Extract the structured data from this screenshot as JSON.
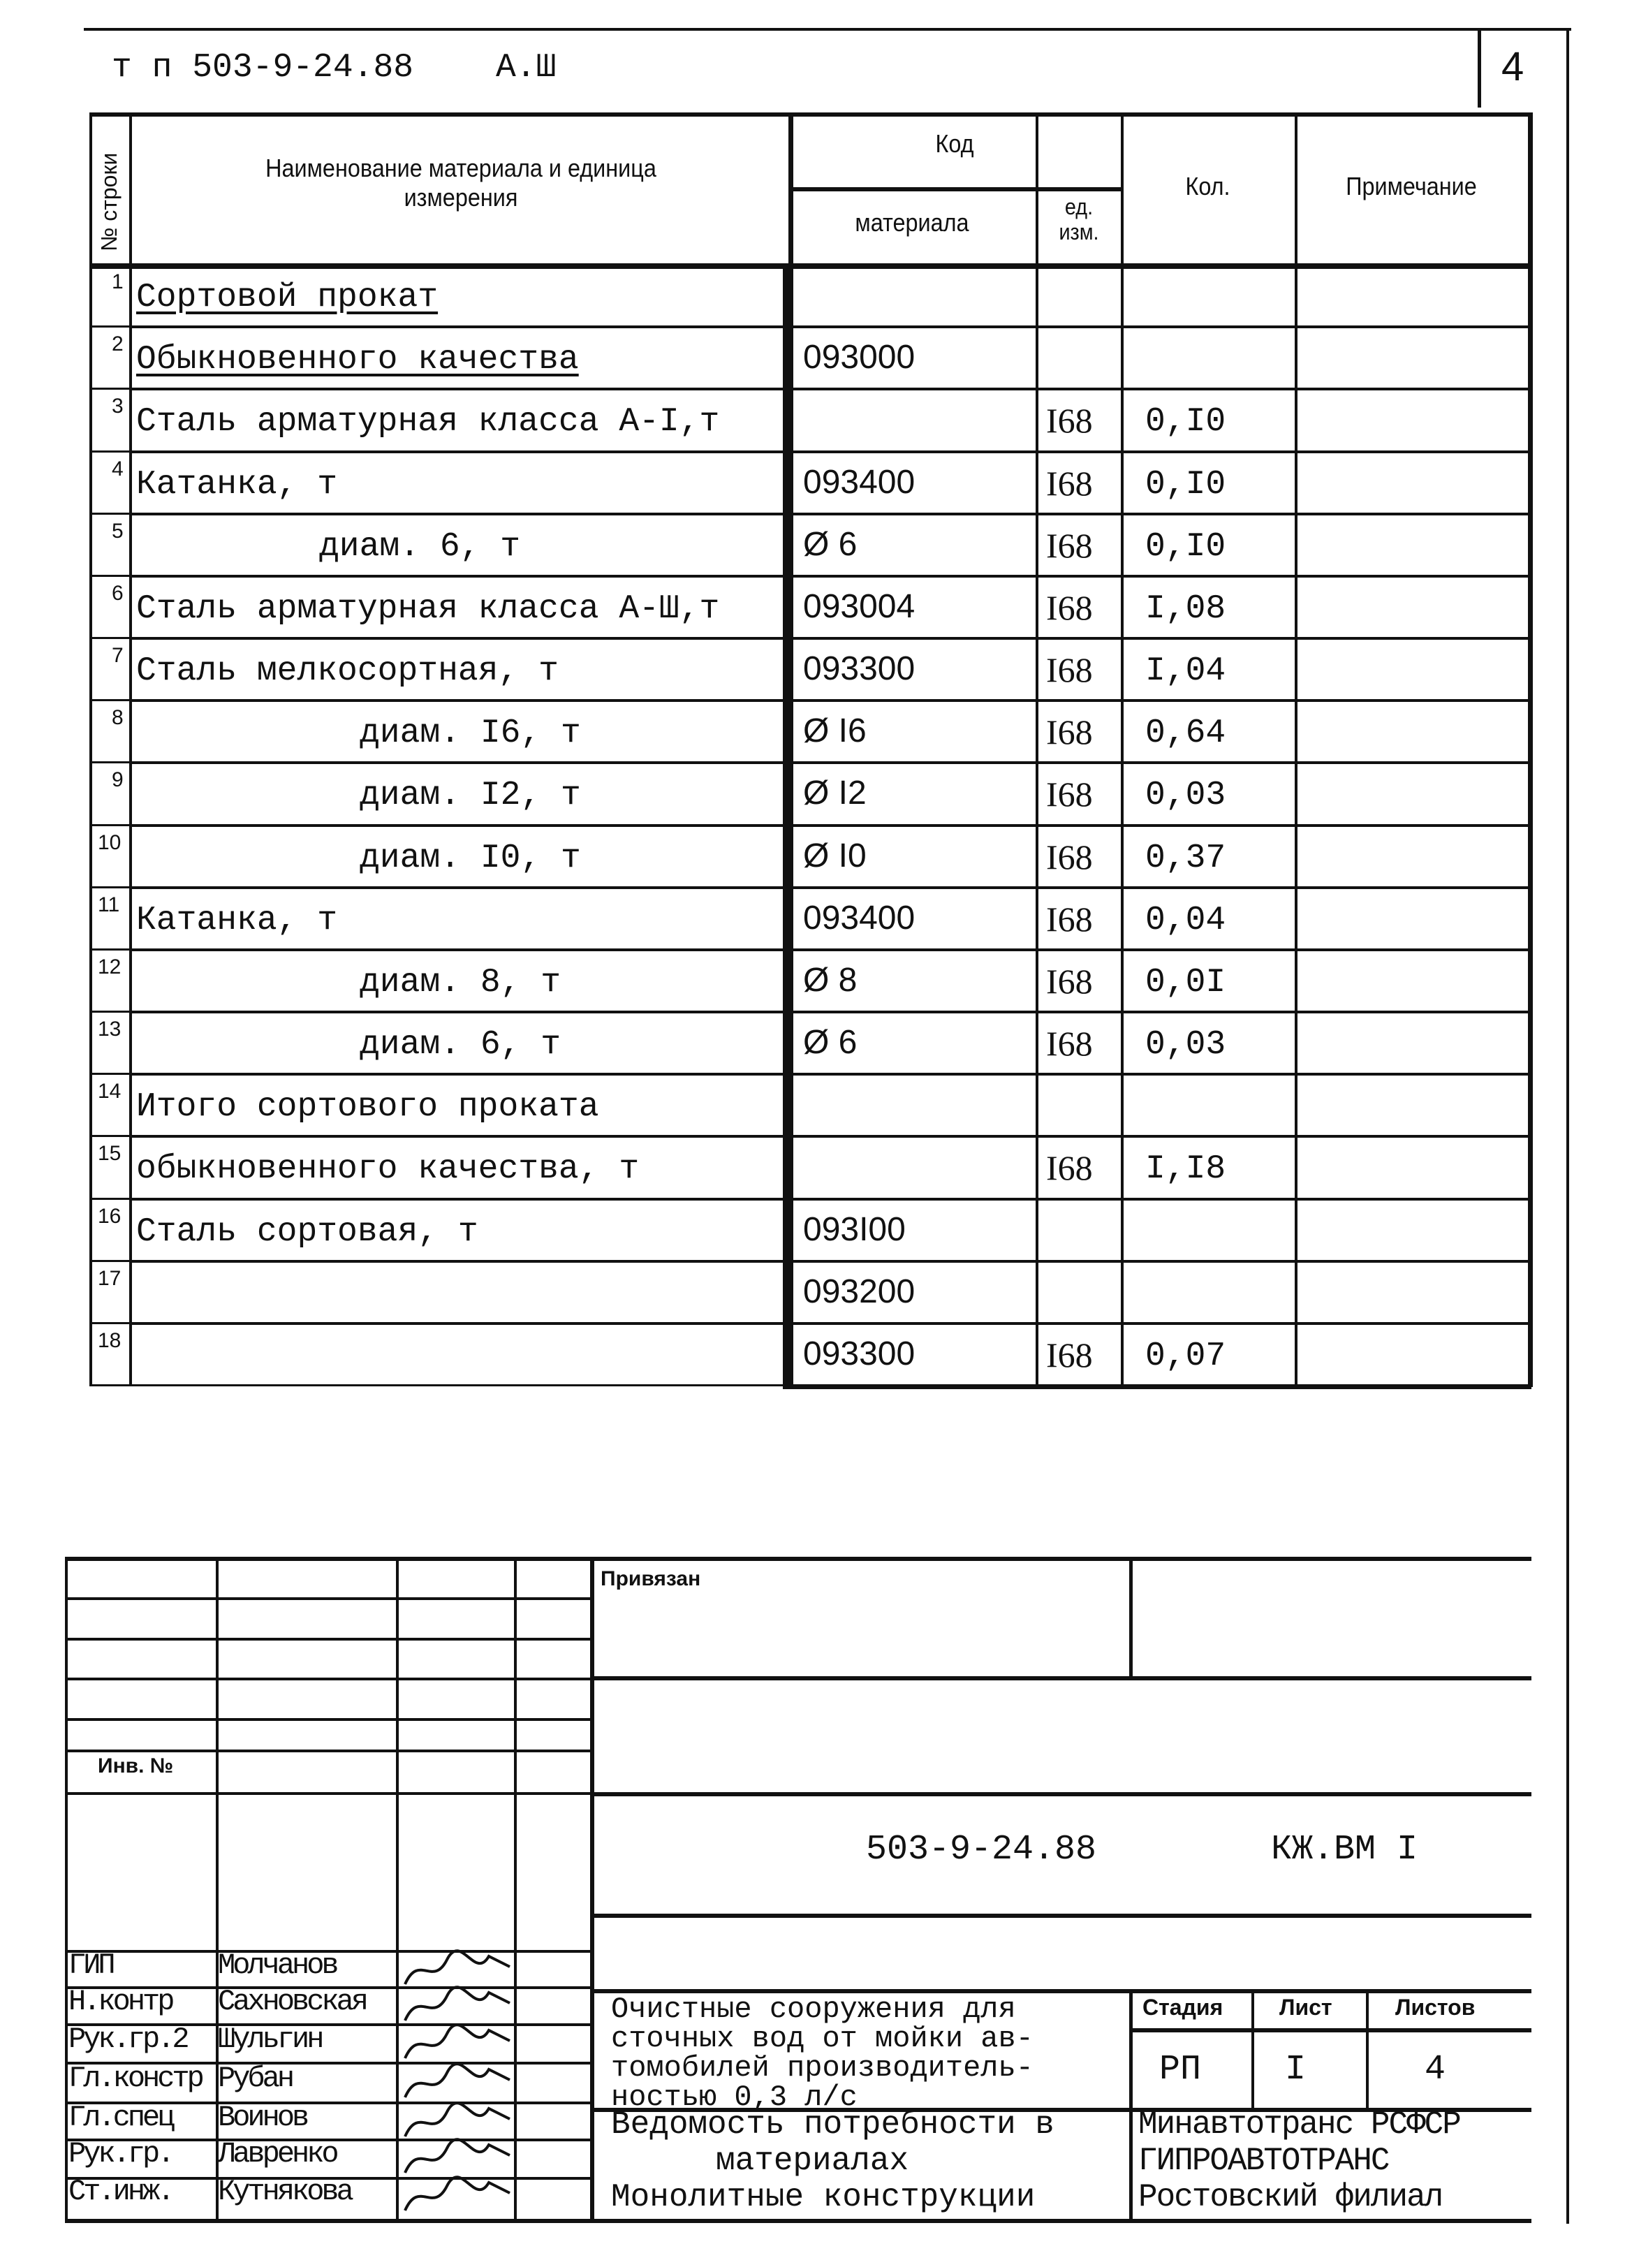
{
  "header": {
    "doc_ref": "т п 503-9-24.88",
    "album": "А.Ш",
    "page_number": "4"
  },
  "table": {
    "columns": {
      "row_no": "№ строки",
      "name": "Наименование материала и единица измерения",
      "code": "Код",
      "code_material": "материала",
      "code_unit": "ед. изм.",
      "qty": "Кол.",
      "note": "Примечание"
    },
    "rows": [
      {
        "n": "1",
        "name": "Сортовой прокат",
        "indent": 0,
        "underline": true,
        "code": "",
        "unit": "",
        "qty": ""
      },
      {
        "n": "2",
        "name": "Обыкновенного качества",
        "indent": 0,
        "underline": true,
        "code": "093000",
        "unit": "",
        "qty": ""
      },
      {
        "n": "3",
        "name": "Сталь арматурная класса А-I,т",
        "indent": 0,
        "code": "",
        "unit": "I68",
        "qty": "0,I0"
      },
      {
        "n": "4",
        "name": "Катанка, т",
        "indent": 0,
        "code": "093400",
        "unit": "I68",
        "qty": "0,I0"
      },
      {
        "n": "5",
        "name": "диам. 6, т",
        "indent": 1,
        "code": "Ø  6",
        "unit": "I68",
        "qty": "0,I0"
      },
      {
        "n": "6",
        "name": "Сталь арматурная класса А-Ш,т",
        "indent": 0,
        "code": "093004",
        "unit": "I68",
        "qty": "I,08"
      },
      {
        "n": "7",
        "name": "Сталь мелкосортная, т",
        "indent": 0,
        "code": "093300",
        "unit": "I68",
        "qty": "I,04"
      },
      {
        "n": "8",
        "name": "диам. I6, т",
        "indent": 2,
        "code": "Ø  I6",
        "unit": "I68",
        "qty": "0,64"
      },
      {
        "n": "9",
        "name": "диам. I2, т",
        "indent": 2,
        "code": "Ø  I2",
        "unit": "I68",
        "qty": "0,03"
      },
      {
        "n": "10",
        "name": "диам. I0, т",
        "indent": 2,
        "code": "Ø  I0",
        "unit": "I68",
        "qty": "0,37"
      },
      {
        "n": "11",
        "name": "Катанка, т",
        "indent": 0,
        "code": "093400",
        "unit": "I68",
        "qty": "0,04"
      },
      {
        "n": "12",
        "name": "диам. 8, т",
        "indent": 2,
        "code": "Ø  8",
        "unit": "I68",
        "qty": "0,0I"
      },
      {
        "n": "13",
        "name": "диам. 6, т",
        "indent": 2,
        "code": "Ø  6",
        "unit": "I68",
        "qty": "0,03"
      },
      {
        "n": "14",
        "name": "Итого сортового проката",
        "indent": 0,
        "code": "",
        "unit": "",
        "qty": ""
      },
      {
        "n": "15",
        "name": "обыкновенного качества, т",
        "indent": 0,
        "code": "",
        "unit": "I68",
        "qty": "I,I8"
      },
      {
        "n": "16",
        "name": "Сталь сортовая, т",
        "indent": 0,
        "code": "093I00",
        "unit": "",
        "qty": ""
      },
      {
        "n": "17",
        "name": "",
        "indent": 0,
        "code": "093200",
        "unit": "",
        "qty": ""
      },
      {
        "n": "18",
        "name": "",
        "indent": 0,
        "code": "093300",
        "unit": "I68",
        "qty": "0,07"
      }
    ]
  },
  "stamp": {
    "bound_label": "Привязан",
    "inv_label": "Инв. №",
    "doc_code": "503-9-24.88",
    "sheet_mark": "КЖ.ВМ I",
    "signers": [
      {
        "role": "ГИП",
        "name": "Молчанов"
      },
      {
        "role": "Н.контр",
        "name": "Сахновская"
      },
      {
        "role": "Рук.гр.2",
        "name": "Шульгин"
      },
      {
        "role": "Гл.констр",
        "name": "Рубан"
      },
      {
        "role": "Гл.спец",
        "name": "Воинов"
      },
      {
        "role": "Рук.гр.",
        "name": "Лавренко"
      },
      {
        "role": "Ст.инж.",
        "name": "Кутнякова"
      }
    ],
    "project_title": [
      "Очистные сооружения для",
      "сточных вод от мойки ав-",
      "томобилей производитель-",
      "ностью 0,3 л/с"
    ],
    "stage_label": "Стадия",
    "sheet_label": "Лист",
    "sheets_label": "Листов",
    "stage": "РП",
    "sheet": "I",
    "sheets": "4",
    "doc_title": [
      "Ведомость потребности в",
      "материалах",
      "Монолитные конструкции"
    ],
    "org": [
      "Минавтотранс РСФСР",
      "ГИПРОАВТОТРАНС",
      "Ростовский филиал"
    ]
  }
}
